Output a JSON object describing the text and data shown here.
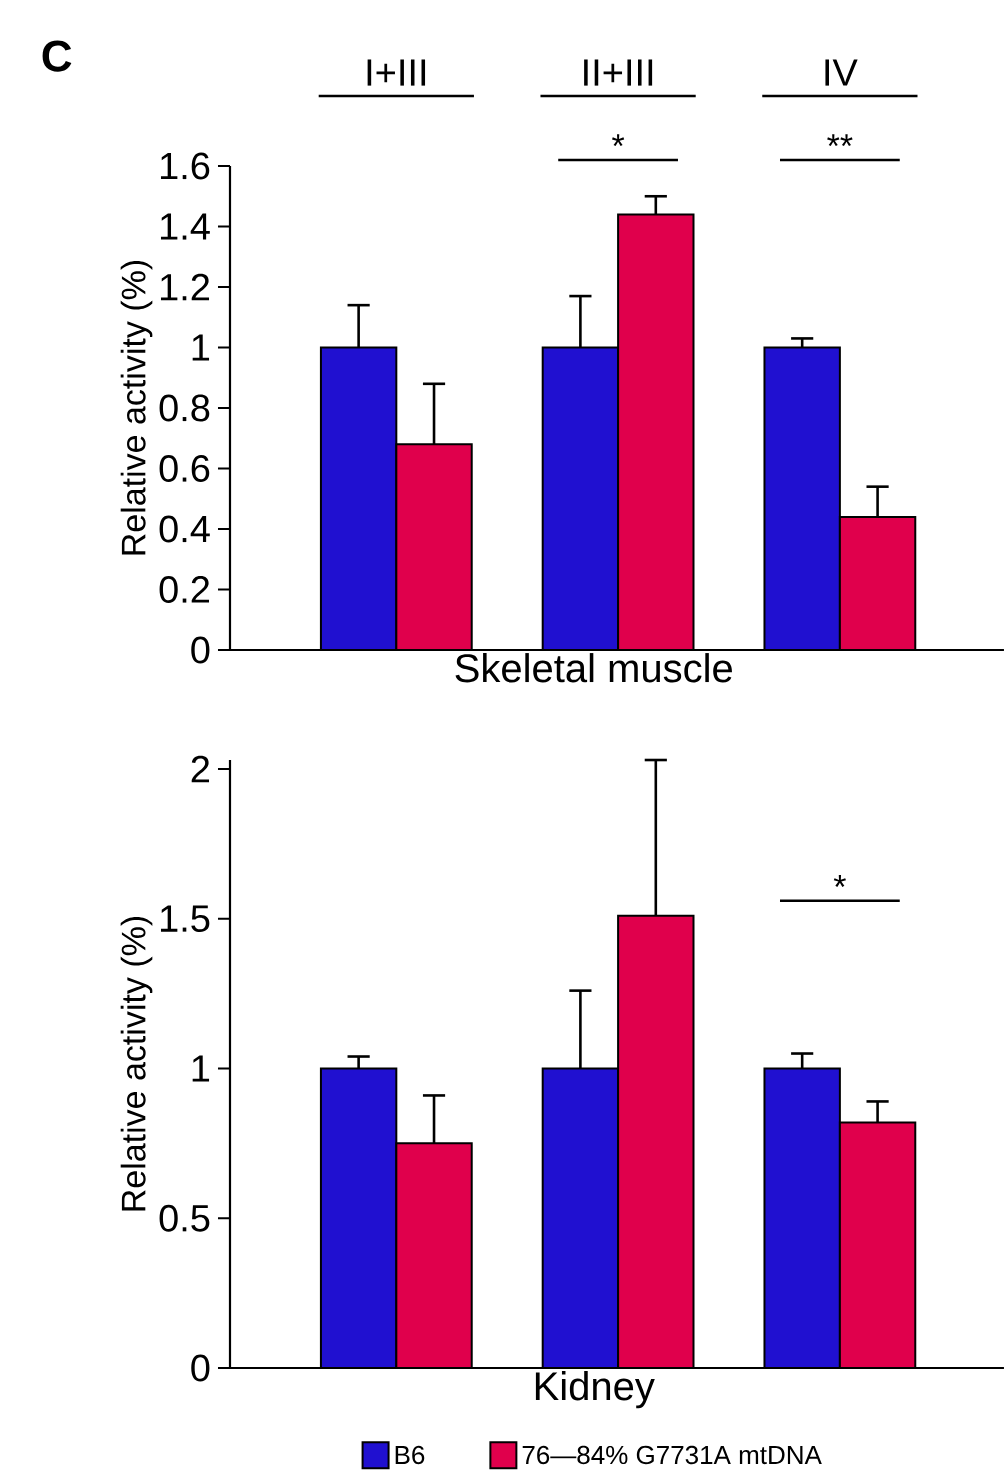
{
  "chart_data": [
    {
      "type": "bar",
      "categories": [
        "I+III",
        "II+III",
        "IV"
      ],
      "xlabel": "Skeletal muscle",
      "ylabel": "Relative activity (%)",
      "ylim": [
        0,
        1.6
      ],
      "yticks": [
        0,
        0.2,
        0.4,
        0.6,
        0.8,
        1,
        1.2,
        1.4,
        1.6
      ],
      "grid": false,
      "series": [
        {
          "color": "#2010d0",
          "values": [
            1,
            1,
            1
          ],
          "errors": [
            0.14,
            0.17,
            0.03
          ]
        },
        {
          "color": "#e0004c",
          "values": [
            0.68,
            1.44,
            0.44
          ],
          "errors": [
            0.2,
            0.06,
            0.1
          ]
        }
      ],
      "annotations": [
        "C",
        "*",
        "**"
      ]
    },
    {
      "type": "bar",
      "categories": [
        null,
        null,
        null
      ],
      "xlabel": "Kidney",
      "ylabel": "Relative activity (%)",
      "ylim": [
        0,
        2.03
      ],
      "yticks": [
        0,
        0.5,
        1,
        1.5,
        2
      ],
      "grid": false,
      "legend": "bottom",
      "series": [
        {
          "name": "B6",
          "color": "#2010d0",
          "values": [
            1,
            1,
            1
          ],
          "errors": [
            0.04,
            0.26,
            0.05
          ]
        },
        {
          "name": "76—84% G7731A mtDNA",
          "color": "#e0004c",
          "values": [
            0.75,
            1.51,
            0.82
          ],
          "errors": [
            0.16,
            0.52,
            0.07
          ]
        }
      ],
      "annotations": [
        "*"
      ]
    }
  ]
}
